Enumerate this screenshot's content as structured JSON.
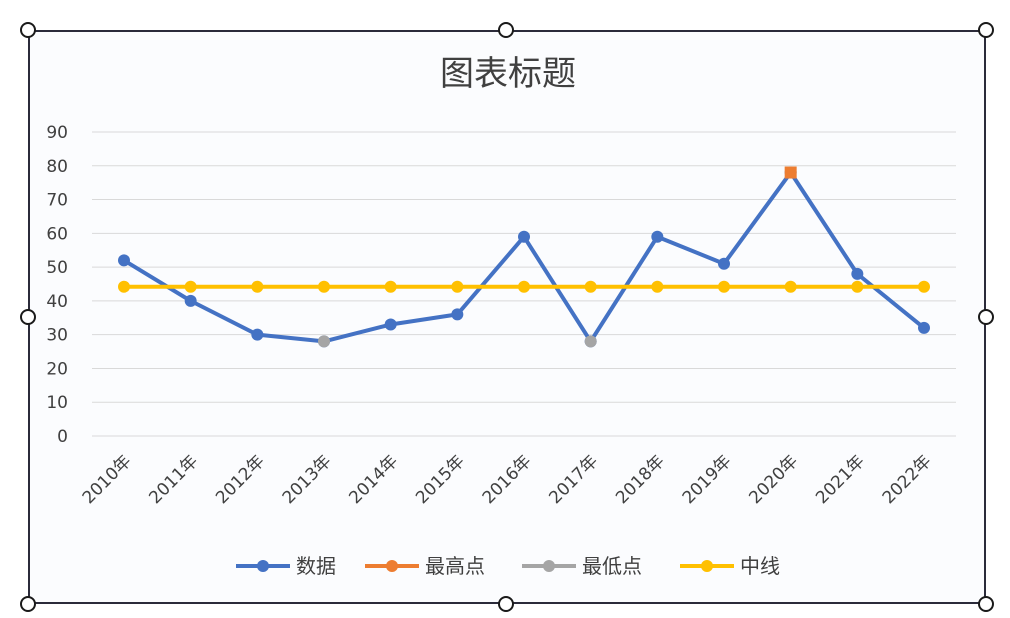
{
  "chart_data": {
    "type": "line",
    "title": "图表标题",
    "categories": [
      "2010年",
      "2011年",
      "2012年",
      "2013年",
      "2014年",
      "2015年",
      "2016年",
      "2017年",
      "2018年",
      "2019年",
      "2020年",
      "2021年",
      "2022年"
    ],
    "ylim": [
      0,
      90
    ],
    "yticks": [
      0,
      10,
      20,
      30,
      40,
      50,
      60,
      70,
      80,
      90
    ],
    "grid": true,
    "legend_position": "bottom",
    "series": [
      {
        "name": "数据",
        "color": "#4472C4",
        "values": [
          52,
          40,
          30,
          28,
          33,
          36,
          59,
          28,
          59,
          51,
          78,
          48,
          32
        ]
      },
      {
        "name": "最高点",
        "color": "#ED7D31",
        "values": [
          null,
          null,
          null,
          null,
          null,
          null,
          null,
          null,
          null,
          null,
          78,
          null,
          null
        ]
      },
      {
        "name": "最低点",
        "color": "#A5A5A5",
        "values": [
          null,
          null,
          null,
          28,
          null,
          null,
          null,
          28,
          null,
          null,
          null,
          null,
          null
        ]
      },
      {
        "name": "中线",
        "color": "#FFC000",
        "values": [
          44.2,
          44.2,
          44.2,
          44.2,
          44.2,
          44.2,
          44.2,
          44.2,
          44.2,
          44.2,
          44.2,
          44.2,
          44.2
        ]
      }
    ]
  }
}
